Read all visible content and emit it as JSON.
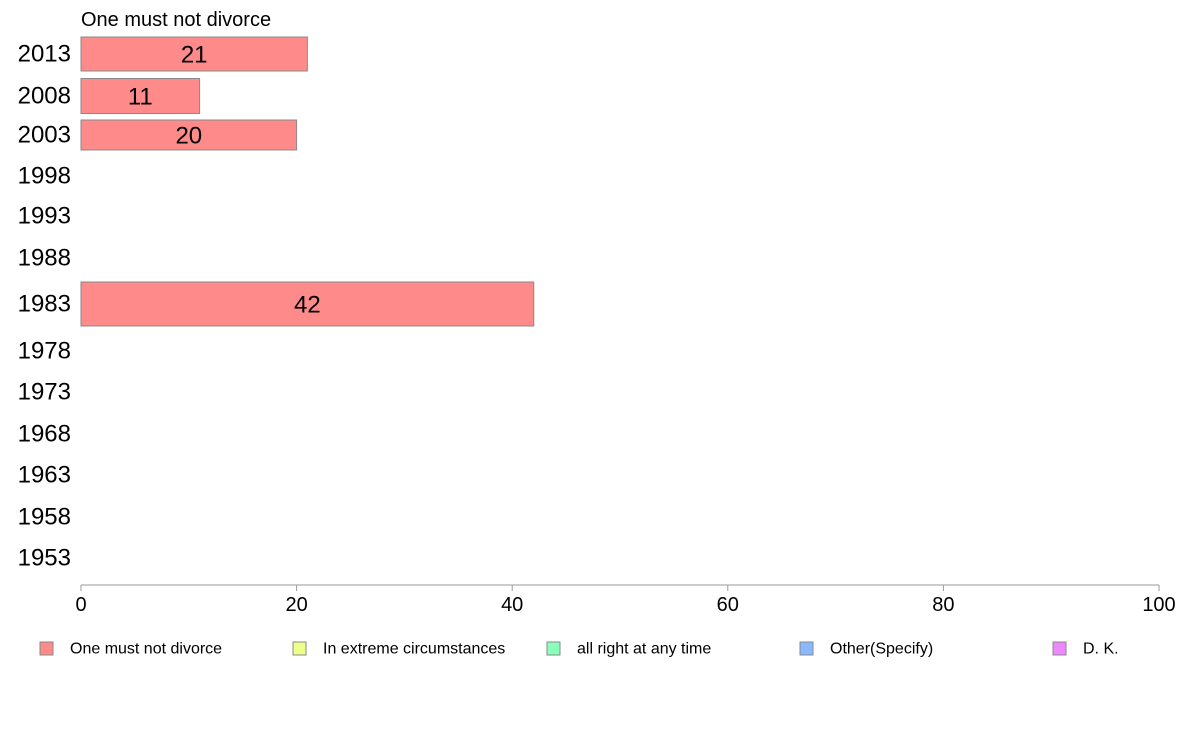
{
  "chart_data": {
    "type": "bar",
    "orientation": "horizontal",
    "series_title": "One must not divorce",
    "categories": [
      "2013",
      "2008",
      "2003",
      "1998",
      "1993",
      "1988",
      "1983",
      "1978",
      "1973",
      "1968",
      "1963",
      "1958",
      "1953"
    ],
    "values": [
      21,
      11,
      20,
      null,
      null,
      null,
      42,
      null,
      null,
      null,
      null,
      null,
      null
    ],
    "data_labels": [
      "21",
      "11",
      "20",
      "",
      "",
      "",
      "42",
      "",
      "",
      "",
      "",
      "",
      ""
    ],
    "xlim": [
      0,
      100
    ],
    "xticks": [
      0,
      20,
      40,
      60,
      80,
      100
    ],
    "grid": false,
    "legend_position": "bottom",
    "legend": [
      {
        "label": "One must not divorce",
        "color": "#ff8a8a"
      },
      {
        "label": "In extreme circumstances",
        "color": "#eeff8a"
      },
      {
        "label": "all right at any time",
        "color": "#8affbb"
      },
      {
        "label": "Other(Specify)",
        "color": "#8ab8ff"
      },
      {
        "label": "D. K.",
        "color": "#ee88ff"
      }
    ],
    "bar_color": "#ff8a8a"
  }
}
